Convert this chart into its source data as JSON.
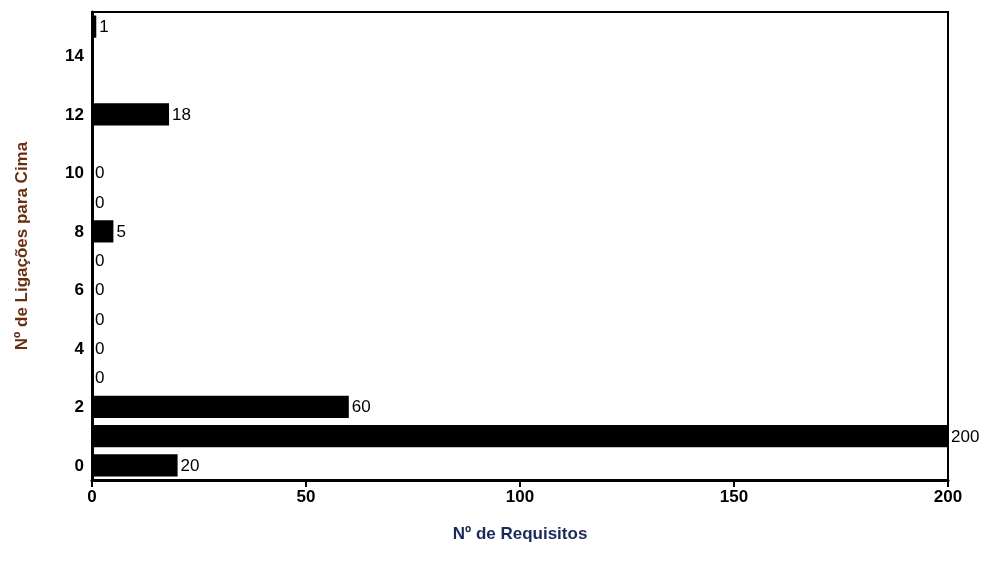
{
  "chart_data": {
    "type": "bar",
    "orientation": "horizontal",
    "xlabel": "Nº de Requisitos",
    "ylabel": "Nº de Ligações para Cima",
    "x": [
      0,
      1,
      2,
      3,
      4,
      5,
      6,
      7,
      8,
      9,
      10,
      12,
      15
    ],
    "values": [
      20,
      200,
      60,
      0,
      0,
      0,
      0,
      0,
      5,
      0,
      0,
      18,
      1
    ],
    "color": "#000000",
    "data_labels": true,
    "xlim": [
      0,
      200
    ],
    "xticks": [
      0,
      50,
      100,
      150,
      200
    ],
    "ylim": [
      -0.5,
      15.5
    ],
    "yticks": [
      0,
      2,
      4,
      6,
      8,
      10,
      12,
      14
    ]
  }
}
